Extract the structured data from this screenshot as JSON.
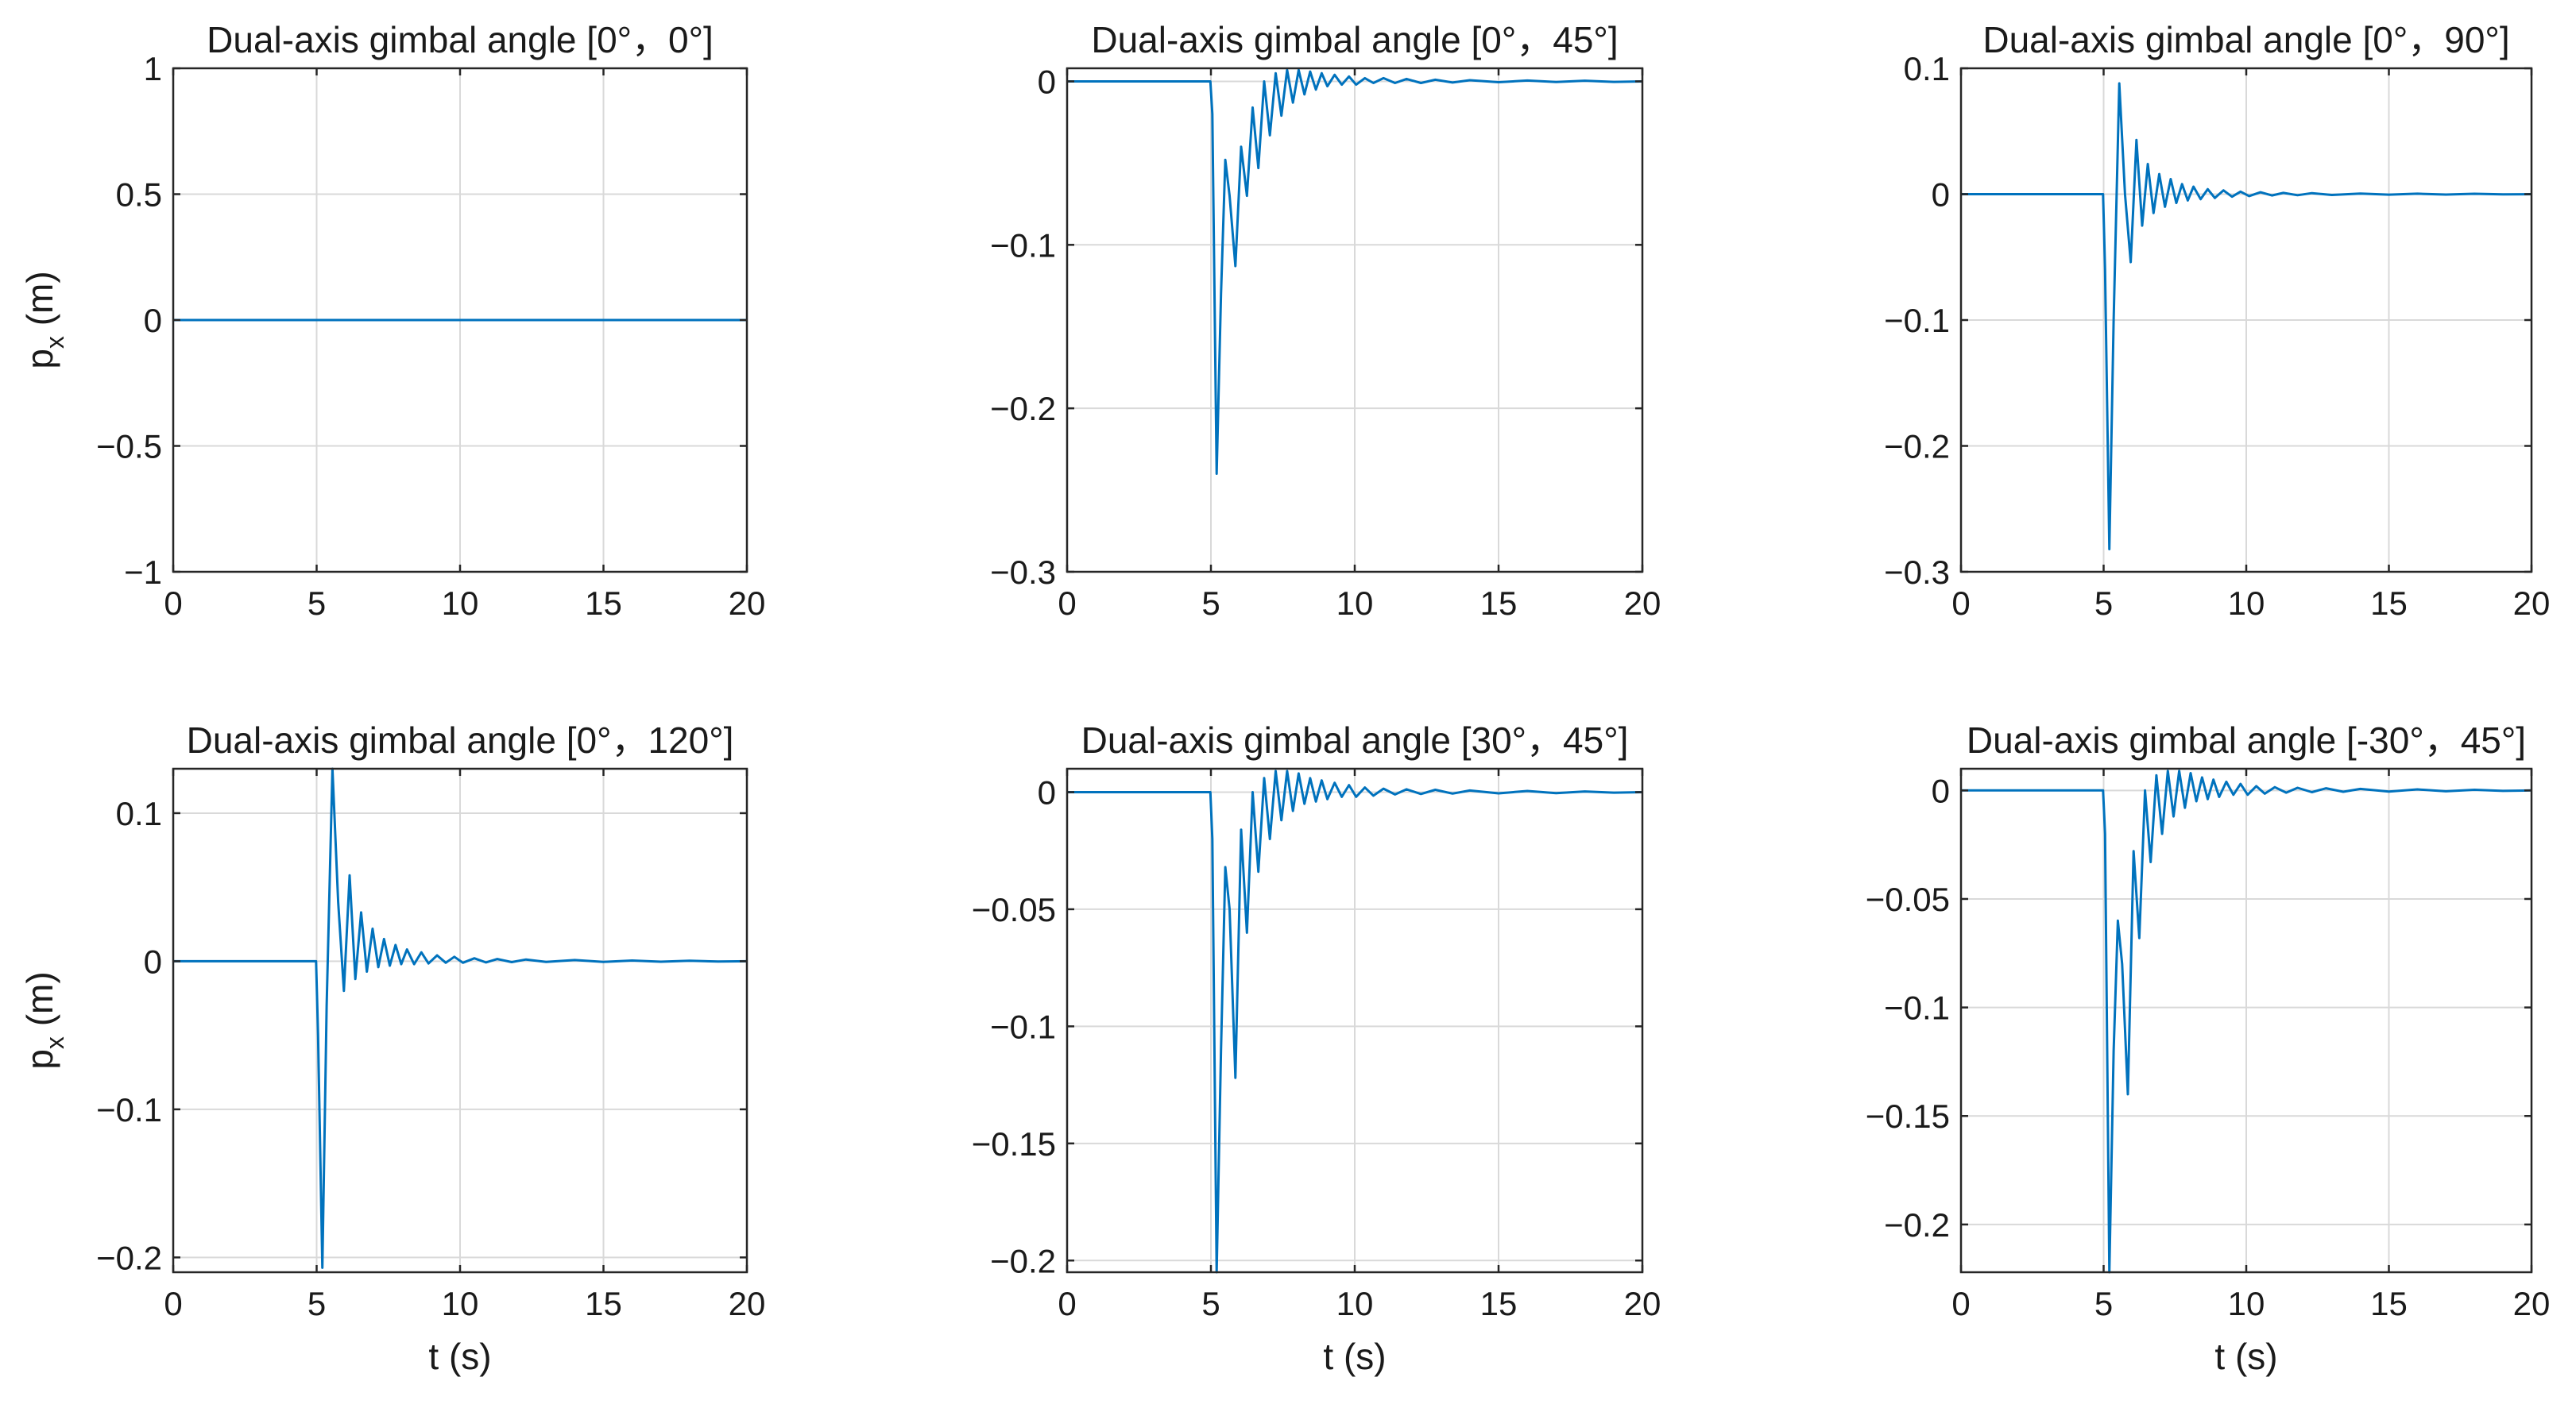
{
  "chart_data": [
    {
      "type": "line",
      "title": "Dual-axis gimbal angle  [0°，0°]",
      "xlabel": "",
      "ylabel": "p_x (m)",
      "xlim": [
        0,
        20
      ],
      "ylim": [
        -1,
        1
      ],
      "xticks": [
        0,
        5,
        10,
        15,
        20
      ],
      "xtick_labels": [
        "0",
        "5",
        "10",
        "15",
        "20"
      ],
      "yticks": [
        -1,
        -0.5,
        0,
        0.5,
        1
      ],
      "ytick_labels": [
        "−1",
        "−0.5",
        "0",
        "0.5",
        "1"
      ],
      "grid": true,
      "color": "#0072BD",
      "series": [
        {
          "x": [
            0,
            20
          ],
          "y": [
            0,
            0
          ]
        }
      ]
    },
    {
      "type": "line",
      "title": "Dual-axis gimbal angle  [0°，45°]",
      "xlabel": "",
      "ylabel": "",
      "xlim": [
        0,
        20
      ],
      "ylim": [
        -0.3,
        0.008
      ],
      "xticks": [
        0,
        5,
        10,
        15,
        20
      ],
      "xtick_labels": [
        "0",
        "5",
        "10",
        "15",
        "20"
      ],
      "yticks": [
        -0.3,
        -0.2,
        -0.1,
        0
      ],
      "ytick_labels": [
        "−0.3",
        "−0.2",
        "−0.1",
        "0"
      ],
      "grid": true,
      "color": "#0072BD",
      "series": [
        {
          "x": [
            0,
            4.98,
            5.05,
            5.2,
            5.35,
            5.5,
            5.65,
            5.85,
            6.05,
            6.25,
            6.45,
            6.65,
            6.85,
            7.05,
            7.25,
            7.45,
            7.65,
            7.85,
            8.05,
            8.25,
            8.45,
            8.65,
            8.85,
            9.05,
            9.3,
            9.55,
            9.8,
            10.05,
            10.35,
            10.65,
            11.0,
            11.4,
            11.8,
            12.3,
            12.8,
            13.4,
            14.0,
            15.0,
            16.0,
            17.0,
            18.0,
            19.0,
            20.0
          ],
          "y": [
            0,
            0,
            -0.02,
            -0.24,
            -0.13,
            -0.048,
            -0.07,
            -0.113,
            -0.04,
            -0.07,
            -0.016,
            -0.053,
            0.0,
            -0.033,
            0.005,
            -0.021,
            0.007,
            -0.013,
            0.007,
            -0.008,
            0.006,
            -0.005,
            0.005,
            -0.003,
            0.004,
            -0.002,
            0.003,
            -0.002,
            0.002,
            -0.001,
            0.002,
            -0.001,
            0.0015,
            -0.001,
            0.001,
            -0.0007,
            0.0007,
            -0.0005,
            0.0005,
            -0.0004,
            0.0004,
            -0.0003,
            0
          ]
        }
      ]
    },
    {
      "type": "line",
      "title": "Dual-axis gimbal angle  [0°，90°]",
      "xlabel": "",
      "ylabel": "",
      "xlim": [
        0,
        20
      ],
      "ylim": [
        -0.3,
        0.1
      ],
      "xticks": [
        0,
        5,
        10,
        15,
        20
      ],
      "xtick_labels": [
        "0",
        "5",
        "10",
        "15",
        "20"
      ],
      "yticks": [
        -0.3,
        -0.2,
        -0.1,
        0,
        0.1
      ],
      "ytick_labels": [
        "−0.3",
        "−0.2",
        "−0.1",
        "0",
        "0.1"
      ],
      "grid": true,
      "color": "#0072BD",
      "series": [
        {
          "x": [
            0,
            4.98,
            5.05,
            5.2,
            5.35,
            5.55,
            5.75,
            5.95,
            6.15,
            6.35,
            6.55,
            6.75,
            6.95,
            7.15,
            7.35,
            7.55,
            7.75,
            7.95,
            8.15,
            8.4,
            8.65,
            8.9,
            9.2,
            9.5,
            9.8,
            10.1,
            10.5,
            10.9,
            11.3,
            11.8,
            12.3,
            13.0,
            14.0,
            15.0,
            16.0,
            17.0,
            18.0,
            19.0,
            20.0
          ],
          "y": [
            0,
            0,
            -0.06,
            -0.282,
            -0.1,
            0.088,
            0.0,
            -0.054,
            0.043,
            -0.025,
            0.024,
            -0.015,
            0.016,
            -0.01,
            0.012,
            -0.007,
            0.008,
            -0.005,
            0.006,
            -0.004,
            0.004,
            -0.003,
            0.003,
            -0.002,
            0.002,
            -0.0015,
            0.0015,
            -0.001,
            0.001,
            -0.0008,
            0.0008,
            -0.0006,
            0.0005,
            -0.0004,
            0.0004,
            -0.0003,
            0.0003,
            -0.0002,
            0
          ]
        }
      ]
    },
    {
      "type": "line",
      "title": "Dual-axis gimbal angle  [0°，120°]",
      "xlabel": "t (s)",
      "ylabel": "p_x (m)",
      "xlim": [
        0,
        20
      ],
      "ylim": [
        -0.21,
        0.13
      ],
      "xticks": [
        0,
        5,
        10,
        15,
        20
      ],
      "xtick_labels": [
        "0",
        "5",
        "10",
        "15",
        "20"
      ],
      "yticks": [
        -0.2,
        -0.1,
        0,
        0.1
      ],
      "ytick_labels": [
        "−0.2",
        "−0.1",
        "0",
        "0.1"
      ],
      "grid": true,
      "color": "#0072BD",
      "series": [
        {
          "x": [
            0,
            4.98,
            5.05,
            5.2,
            5.35,
            5.55,
            5.75,
            5.95,
            6.15,
            6.35,
            6.55,
            6.75,
            6.95,
            7.15,
            7.35,
            7.55,
            7.75,
            7.95,
            8.15,
            8.4,
            8.65,
            8.9,
            9.2,
            9.5,
            9.8,
            10.1,
            10.5,
            10.9,
            11.3,
            11.8,
            12.3,
            13.0,
            14.0,
            15.0,
            16.0,
            17.0,
            18.0,
            19.0,
            20.0
          ],
          "y": [
            0,
            0,
            -0.05,
            -0.207,
            -0.03,
            0.13,
            0.04,
            -0.02,
            0.058,
            -0.012,
            0.033,
            -0.007,
            0.022,
            -0.004,
            0.015,
            -0.003,
            0.011,
            -0.002,
            0.008,
            -0.002,
            0.006,
            -0.0015,
            0.004,
            -0.001,
            0.003,
            -0.001,
            0.002,
            -0.0008,
            0.0015,
            -0.0006,
            0.0012,
            -0.0005,
            0.0008,
            -0.0004,
            0.0005,
            -0.0003,
            0.0004,
            -0.0002,
            0
          ]
        }
      ]
    },
    {
      "type": "line",
      "title": "Dual-axis gimbal angle  [30°，45°]",
      "xlabel": "t (s)",
      "ylabel": "",
      "xlim": [
        0,
        20
      ],
      "ylim": [
        -0.205,
        0.01
      ],
      "xticks": [
        0,
        5,
        10,
        15,
        20
      ],
      "xtick_labels": [
        "0",
        "5",
        "10",
        "15",
        "20"
      ],
      "yticks": [
        -0.2,
        -0.15,
        -0.1,
        -0.05,
        0
      ],
      "ytick_labels": [
        "−0.2",
        "−0.15",
        "−0.1",
        "−0.05",
        "0"
      ],
      "grid": true,
      "color": "#0072BD",
      "series": [
        {
          "x": [
            0,
            4.98,
            5.05,
            5.2,
            5.35,
            5.5,
            5.65,
            5.85,
            6.05,
            6.25,
            6.45,
            6.65,
            6.85,
            7.05,
            7.25,
            7.45,
            7.65,
            7.85,
            8.05,
            8.25,
            8.45,
            8.65,
            8.85,
            9.05,
            9.3,
            9.55,
            9.8,
            10.05,
            10.35,
            10.65,
            11.0,
            11.4,
            11.8,
            12.3,
            12.8,
            13.4,
            14.0,
            15.0,
            16.0,
            17.0,
            18.0,
            19.0,
            20.0
          ],
          "y": [
            0,
            0,
            -0.02,
            -0.205,
            -0.11,
            -0.032,
            -0.05,
            -0.122,
            -0.016,
            -0.06,
            0.0,
            -0.034,
            0.006,
            -0.02,
            0.009,
            -0.012,
            0.009,
            -0.008,
            0.008,
            -0.005,
            0.006,
            -0.004,
            0.005,
            -0.003,
            0.004,
            -0.002,
            0.003,
            -0.002,
            0.002,
            -0.0015,
            0.0015,
            -0.001,
            0.0012,
            -0.0008,
            0.001,
            -0.0006,
            0.0007,
            -0.0005,
            0.0005,
            -0.0004,
            0.0003,
            -0.0002,
            0
          ]
        }
      ]
    },
    {
      "type": "line",
      "title": "Dual-axis gimbal angle  [-30°，45°]",
      "xlabel": "t (s)",
      "ylabel": "",
      "xlim": [
        0,
        20
      ],
      "ylim": [
        -0.222,
        0.01
      ],
      "xticks": [
        0,
        5,
        10,
        15,
        20
      ],
      "xtick_labels": [
        "0",
        "5",
        "10",
        "15",
        "20"
      ],
      "yticks": [
        -0.2,
        -0.15,
        -0.1,
        -0.05,
        0
      ],
      "ytick_labels": [
        "−0.2",
        "−0.15",
        "−0.1",
        "−0.05",
        "0"
      ],
      "grid": true,
      "color": "#0072BD",
      "series": [
        {
          "x": [
            0,
            4.98,
            5.05,
            5.2,
            5.35,
            5.5,
            5.65,
            5.85,
            6.05,
            6.25,
            6.45,
            6.65,
            6.85,
            7.05,
            7.25,
            7.45,
            7.65,
            7.85,
            8.05,
            8.25,
            8.45,
            8.65,
            8.85,
            9.05,
            9.3,
            9.55,
            9.8,
            10.05,
            10.35,
            10.65,
            11.0,
            11.4,
            11.8,
            12.3,
            12.8,
            13.4,
            14.0,
            15.0,
            16.0,
            17.0,
            18.0,
            19.0,
            20.0
          ],
          "y": [
            0,
            0,
            -0.02,
            -0.222,
            -0.12,
            -0.06,
            -0.08,
            -0.14,
            -0.028,
            -0.068,
            0.0,
            -0.033,
            0.007,
            -0.02,
            0.009,
            -0.012,
            0.009,
            -0.008,
            0.008,
            -0.005,
            0.006,
            -0.004,
            0.005,
            -0.003,
            0.004,
            -0.002,
            0.003,
            -0.002,
            0.002,
            -0.0015,
            0.0015,
            -0.001,
            0.0012,
            -0.0008,
            0.001,
            -0.0006,
            0.0007,
            -0.0005,
            0.0005,
            -0.0004,
            0.0003,
            -0.0002,
            0
          ]
        }
      ]
    }
  ]
}
